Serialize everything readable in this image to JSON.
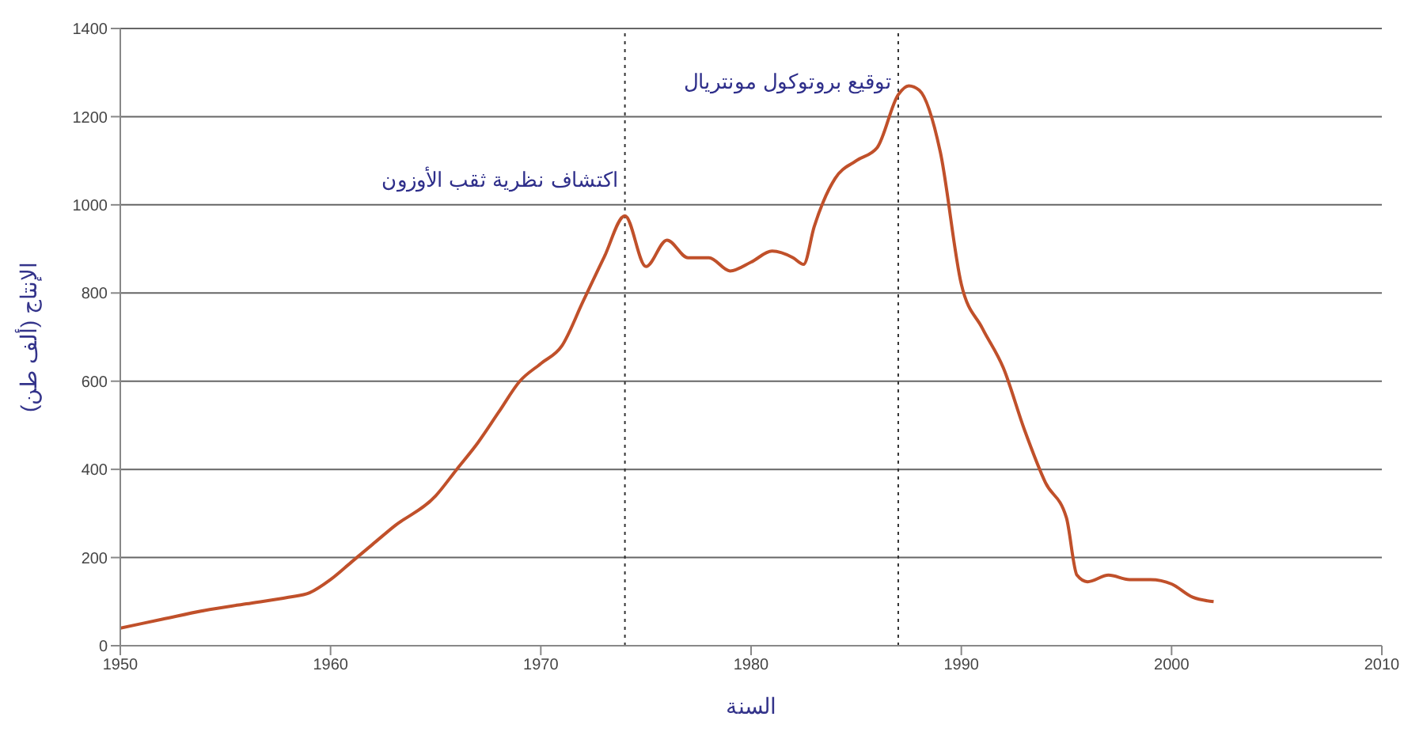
{
  "chart_data": {
    "type": "line",
    "xlabel": "السنة",
    "ylabel": "الإنتاج (ألف طن)",
    "xlim": [
      1950,
      2010
    ],
    "xticks": [
      1950,
      1960,
      1970,
      1980,
      1990,
      2000,
      2010
    ],
    "ylim": [
      0,
      1400
    ],
    "yticks": [
      0,
      200,
      400,
      600,
      800,
      1000,
      1200,
      1400
    ],
    "grid": "y",
    "marker": "none",
    "line_style": "solid",
    "series": [
      {
        "color": "#c0502a",
        "x": [
          1950,
          1952,
          1954,
          1956,
          1958,
          1959,
          1960,
          1961,
          1962,
          1963,
          1965,
          1966,
          1967,
          1968,
          1969,
          1970,
          1971,
          1972,
          1973,
          1974,
          1975,
          1976,
          1977,
          1978,
          1979,
          1980,
          1981,
          1982,
          1982.5,
          1983,
          1984,
          1985,
          1986,
          1987,
          1987.5,
          1988,
          1989,
          1990,
          1991,
          1992,
          1993,
          1994,
          1995,
          1995.5,
          1996,
          1997,
          1998,
          1999,
          2000,
          2001,
          2002
        ],
        "values": [
          40,
          60,
          80,
          95,
          110,
          120,
          150,
          190,
          230,
          270,
          340,
          400,
          460,
          530,
          600,
          640,
          680,
          780,
          880,
          975,
          860,
          920,
          880,
          880,
          850,
          870,
          895,
          880,
          865,
          950,
          1060,
          1100,
          1130,
          1250,
          1270,
          1260,
          1120,
          820,
          720,
          630,
          490,
          370,
          290,
          160,
          145,
          160,
          150,
          150,
          140,
          110,
          100
        ]
      }
    ],
    "ref_lines": [
      {
        "axis": "x",
        "value": 1974,
        "label": "اكتشاف نظرية ثقب الأوزون",
        "color": "#333333",
        "line_style": "dotted"
      },
      {
        "axis": "x",
        "value": 1987,
        "label": "توقيع بروتوكول مونتريال",
        "color": "#333333",
        "line_style": "dotted"
      }
    ]
  }
}
